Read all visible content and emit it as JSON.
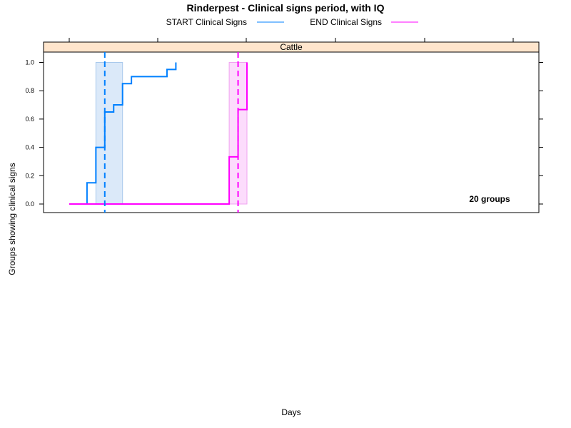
{
  "chart_data": {
    "type": "line",
    "title": "Rinderpest - Clinical signs period, with IQ",
    "xlabel": "Days",
    "ylabel": "Groups showing clinical signs",
    "panel_label": "Cattle",
    "annotation": "20 groups",
    "ylim": [
      0,
      1.05
    ],
    "y_ticks": [
      "0.0",
      "0.2",
      "0.4",
      "0.6",
      "0.8",
      "1.0"
    ],
    "x_axis_tick_labels_shown": false,
    "legend_position": "top",
    "series": [
      {
        "name": "START Clinical Signs",
        "color": "#0080ff",
        "step_x": [
          0,
          2,
          3,
          4,
          5,
          6,
          7,
          11,
          12
        ],
        "step_y": [
          0.0,
          0.15,
          0.4,
          0.65,
          0.7,
          0.85,
          0.9,
          0.95,
          1.0
        ],
        "x_end": 12,
        "median_x": 4,
        "iq_band": [
          3,
          6
        ]
      },
      {
        "name": "END Clinical Signs",
        "color": "#ff00ff",
        "step_x": [
          0,
          18,
          19,
          20
        ],
        "step_y": [
          0.0,
          0.333,
          0.667,
          1.0
        ],
        "x_end": 20,
        "median_x": 19,
        "iq_band": [
          18,
          20
        ]
      }
    ]
  }
}
